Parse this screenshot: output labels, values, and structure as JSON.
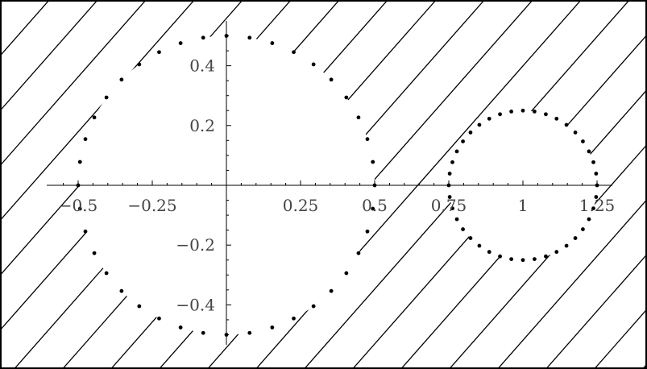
{
  "chart_data": {
    "type": "scatter",
    "title": "",
    "xlabel": "",
    "ylabel": "",
    "xlim": [
      -0.55,
      1.27
    ],
    "ylim": [
      -0.53,
      0.53
    ],
    "grid": false,
    "x_ticks": [
      {
        "value": -0.5,
        "label": "−0.5"
      },
      {
        "value": -0.25,
        "label": "−0.25"
      },
      {
        "value": 0.25,
        "label": "0.25"
      },
      {
        "value": 0.5,
        "label": "0.5"
      },
      {
        "value": 0.75,
        "label": "0.75"
      },
      {
        "value": 1,
        "label": "1"
      },
      {
        "value": 1.25,
        "label": "1.25"
      }
    ],
    "y_ticks": [
      {
        "value": 0.4,
        "label": "0.4"
      },
      {
        "value": 0.2,
        "label": "0.2"
      },
      {
        "value": -0.2,
        "label": "−0.2"
      },
      {
        "value": -0.4,
        "label": "−0.4"
      }
    ],
    "series": [
      {
        "shape": "circle",
        "center": [
          0,
          0
        ],
        "radius": 0.5,
        "points": 40
      },
      {
        "shape": "circle",
        "center": [
          1,
          0
        ],
        "radius": 0.25,
        "points": 40
      }
    ],
    "region": {
      "fill": "diagonal hatch",
      "hatched": "outside the larger circle and outside the smaller circle"
    }
  }
}
